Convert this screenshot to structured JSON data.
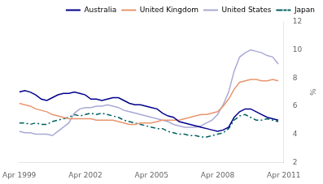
{
  "chart_data": {
    "type": "line",
    "y_label": "%",
    "x": [
      1999.25,
      1999.5,
      1999.75,
      2000.0,
      2000.25,
      2000.5,
      2000.75,
      2001.0,
      2001.25,
      2001.5,
      2001.75,
      2002.0,
      2002.25,
      2002.5,
      2002.75,
      2003.0,
      2003.25,
      2003.5,
      2003.75,
      2004.0,
      2004.25,
      2004.5,
      2004.75,
      2005.0,
      2005.25,
      2005.5,
      2005.75,
      2006.0,
      2006.25,
      2006.5,
      2006.75,
      2007.0,
      2007.25,
      2007.5,
      2007.75,
      2008.0,
      2008.25,
      2008.5,
      2008.75,
      2009.0,
      2009.25,
      2009.5,
      2009.75,
      2010.0,
      2010.25,
      2010.5,
      2010.75,
      2011.0
    ],
    "series": [
      {
        "name": "Australia",
        "color": "#00008B",
        "line_style": "solid",
        "values": [
          7.0,
          7.1,
          7.0,
          6.8,
          6.5,
          6.4,
          6.6,
          6.8,
          6.9,
          6.9,
          7.0,
          6.9,
          6.8,
          6.5,
          6.5,
          6.4,
          6.5,
          6.6,
          6.6,
          6.4,
          6.2,
          6.1,
          6.1,
          6.0,
          5.9,
          5.8,
          5.5,
          5.3,
          5.2,
          4.9,
          4.8,
          4.7,
          4.6,
          4.5,
          4.4,
          4.3,
          4.2,
          4.3,
          4.5,
          5.2,
          5.6,
          5.8,
          5.8,
          5.6,
          5.4,
          5.2,
          5.1,
          5.0
        ]
      },
      {
        "name": "United Kingdom",
        "color": "#E8956D",
        "line_style": "solid",
        "values": [
          6.2,
          6.1,
          6.0,
          5.8,
          5.7,
          5.6,
          5.4,
          5.3,
          5.2,
          5.1,
          5.1,
          5.1,
          5.1,
          5.1,
          5.0,
          5.0,
          5.0,
          5.0,
          4.9,
          4.8,
          4.7,
          4.7,
          4.8,
          4.8,
          4.8,
          4.9,
          5.0,
          5.0,
          5.0,
          5.0,
          5.1,
          5.2,
          5.3,
          5.4,
          5.4,
          5.5,
          5.6,
          6.0,
          6.5,
          7.2,
          7.7,
          7.8,
          7.9,
          7.9,
          7.8,
          7.8,
          7.9,
          7.8
        ]
      },
      {
        "name": "United States",
        "color": "#A9A9D4",
        "line_style": "solid",
        "values": [
          4.2,
          4.1,
          4.1,
          4.0,
          4.0,
          4.0,
          3.9,
          4.2,
          4.5,
          4.8,
          5.5,
          5.8,
          5.9,
          5.9,
          6.0,
          6.0,
          6.1,
          6.0,
          5.9,
          5.7,
          5.6,
          5.5,
          5.4,
          5.3,
          5.2,
          5.1,
          5.0,
          4.9,
          4.7,
          4.6,
          4.5,
          4.5,
          4.5,
          4.6,
          4.8,
          5.0,
          5.4,
          6.1,
          7.0,
          8.5,
          9.5,
          9.8,
          10.0,
          9.9,
          9.8,
          9.6,
          9.5,
          9.0
        ]
      },
      {
        "name": "Japan",
        "color": "#006060",
        "line_style": "dashdot",
        "values": [
          4.8,
          4.8,
          4.7,
          4.8,
          4.7,
          4.7,
          4.9,
          5.0,
          5.1,
          5.2,
          5.4,
          5.3,
          5.4,
          5.5,
          5.4,
          5.5,
          5.4,
          5.3,
          5.2,
          5.0,
          4.9,
          4.8,
          4.7,
          4.6,
          4.5,
          4.4,
          4.4,
          4.2,
          4.1,
          4.0,
          4.0,
          3.9,
          3.9,
          3.8,
          3.8,
          3.9,
          4.0,
          4.1,
          4.4,
          5.0,
          5.3,
          5.4,
          5.2,
          5.0,
          5.0,
          5.1,
          5.0,
          4.9
        ]
      }
    ],
    "xlim": [
      1999.25,
      2011.25
    ],
    "xticks": [
      {
        "value": 1999.25,
        "label": "Apr 1999"
      },
      {
        "value": 2002.25,
        "label": "Apr 2002"
      },
      {
        "value": 2005.25,
        "label": "Apr 2005"
      },
      {
        "value": 2008.25,
        "label": "Apr 2008"
      },
      {
        "value": 2011.25,
        "label": "Apr 2011"
      }
    ],
    "ylim": [
      2,
      12
    ],
    "yticks": [
      2,
      4,
      6,
      8,
      10,
      12
    ],
    "grid": false,
    "legend": "upper right"
  }
}
